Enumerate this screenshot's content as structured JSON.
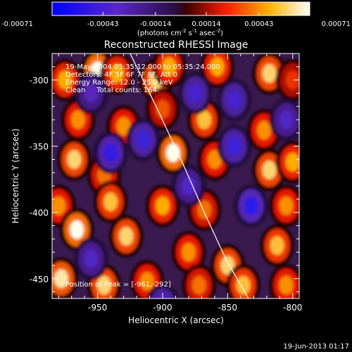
{
  "colorbar": {
    "tick_labels": [
      "-0.00071",
      "-0.00043",
      "-0.00014",
      "0.00014",
      "0.00043",
      "0.00071"
    ],
    "tick_values": [
      -0.00071,
      -0.00043,
      -0.00014,
      0.00014,
      0.00043,
      0.00071
    ],
    "range": [
      -0.00071,
      0.00071
    ],
    "units_label": "(photons cm",
    "units_exp1": "-2",
    "units_mid": " s",
    "units_exp2": "-1",
    "units_mid2": " asec",
    "units_exp3": "-2",
    "units_close": ")"
  },
  "chart_data": {
    "type": "heatmap",
    "title": "Reconstructed RHESSI Image",
    "xlabel": "Heliocentric X (arcsec)",
    "ylabel": "Heliocentric Y (arcsec)",
    "xlim": [
      -985,
      -795
    ],
    "ylim": [
      -465,
      -280
    ],
    "x_ticks": [
      -950,
      -900,
      -850,
      -800
    ],
    "x_tick_labels": [
      "-950",
      "-900",
      "-850",
      "-800"
    ],
    "y_ticks": [
      -450,
      -400,
      -350,
      -300
    ],
    "y_tick_labels": [
      "-450",
      "-400",
      "-350",
      "-300"
    ],
    "annotations": [
      "19-May-2004 05:35:12.000 to 05:35:24.000",
      "Detectors: 4F 5F 6F 7F 8F, Att 0",
      "Energy Range: 12.0 - 25.0 keV",
      "Clean     Total counts: 164."
    ],
    "peak_label": "Position of Peak = [-961,-292]",
    "peak_position": [
      -961,
      -292
    ],
    "limb_curve": [
      [
        -925,
        -280
      ],
      [
        -905,
        -320
      ],
      [
        -885,
        -362
      ],
      [
        -868,
        -400
      ],
      [
        -851,
        -436
      ],
      [
        -834,
        -465
      ]
    ],
    "blobs": [
      {
        "x": -975,
        "y": -300,
        "v": 0.0005
      },
      {
        "x": -950,
        "y": -293,
        "v": 0.00071
      },
      {
        "x": -935,
        "y": -295,
        "v": 0.0005
      },
      {
        "x": -905,
        "y": -300,
        "v": 0.0006
      },
      {
        "x": -895,
        "y": -290,
        "v": 0.0005
      },
      {
        "x": -858,
        "y": -290,
        "v": 0.0005
      },
      {
        "x": -818,
        "y": -295,
        "v": 0.0006
      },
      {
        "x": -800,
        "y": -300,
        "v": 0.0003
      },
      {
        "x": -965,
        "y": -330,
        "v": 0.00045
      },
      {
        "x": -930,
        "y": -335,
        "v": 0.00045
      },
      {
        "x": -900,
        "y": -322,
        "v": 0.00035
      },
      {
        "x": -868,
        "y": -330,
        "v": 0.00055
      },
      {
        "x": -822,
        "y": -338,
        "v": 0.00045
      },
      {
        "x": -968,
        "y": -360,
        "v": 0.0006
      },
      {
        "x": -945,
        "y": -372,
        "v": 0.0004
      },
      {
        "x": -892,
        "y": -355,
        "v": 0.00071
      },
      {
        "x": -860,
        "y": -360,
        "v": 0.00045
      },
      {
        "x": -818,
        "y": -368,
        "v": 0.0006
      },
      {
        "x": -800,
        "y": -362,
        "v": 0.0005
      },
      {
        "x": -980,
        "y": -395,
        "v": 0.00045
      },
      {
        "x": -940,
        "y": -392,
        "v": 0.00055
      },
      {
        "x": -900,
        "y": -395,
        "v": 0.0005
      },
      {
        "x": -868,
        "y": -398,
        "v": 0.0004
      },
      {
        "x": -805,
        "y": -395,
        "v": 0.00045
      },
      {
        "x": -966,
        "y": -413,
        "v": 0.00071
      },
      {
        "x": -928,
        "y": -418,
        "v": 0.0006
      },
      {
        "x": -880,
        "y": -430,
        "v": 0.00045
      },
      {
        "x": -850,
        "y": -440,
        "v": 0.0006
      },
      {
        "x": -812,
        "y": -425,
        "v": 0.00055
      },
      {
        "x": -978,
        "y": -450,
        "v": 0.00065
      },
      {
        "x": -945,
        "y": -455,
        "v": 0.0006
      },
      {
        "x": -912,
        "y": -452,
        "v": 0.00045
      },
      {
        "x": -872,
        "y": -455,
        "v": 0.0004
      },
      {
        "x": -838,
        "y": -455,
        "v": 0.00055
      },
      {
        "x": -805,
        "y": -455,
        "v": 0.00045
      },
      {
        "x": -955,
        "y": -310,
        "v": -0.00035
      },
      {
        "x": -915,
        "y": -345,
        "v": -0.0005
      },
      {
        "x": -880,
        "y": -380,
        "v": -0.0004
      },
      {
        "x": -845,
        "y": -315,
        "v": -0.00045
      },
      {
        "x": -832,
        "y": -395,
        "v": -0.0006
      },
      {
        "x": -955,
        "y": -435,
        "v": -0.0004
      },
      {
        "x": -900,
        "y": -470,
        "v": -0.00045
      },
      {
        "x": -845,
        "y": -350,
        "v": -0.0005
      },
      {
        "x": -805,
        "y": -330,
        "v": -0.0004
      },
      {
        "x": -940,
        "y": -355,
        "v": -0.00055
      },
      {
        "x": -875,
        "y": -310,
        "v": -0.00045
      }
    ]
  },
  "footer": {
    "date_stamp": "19-Jun-2013 01:17"
  }
}
